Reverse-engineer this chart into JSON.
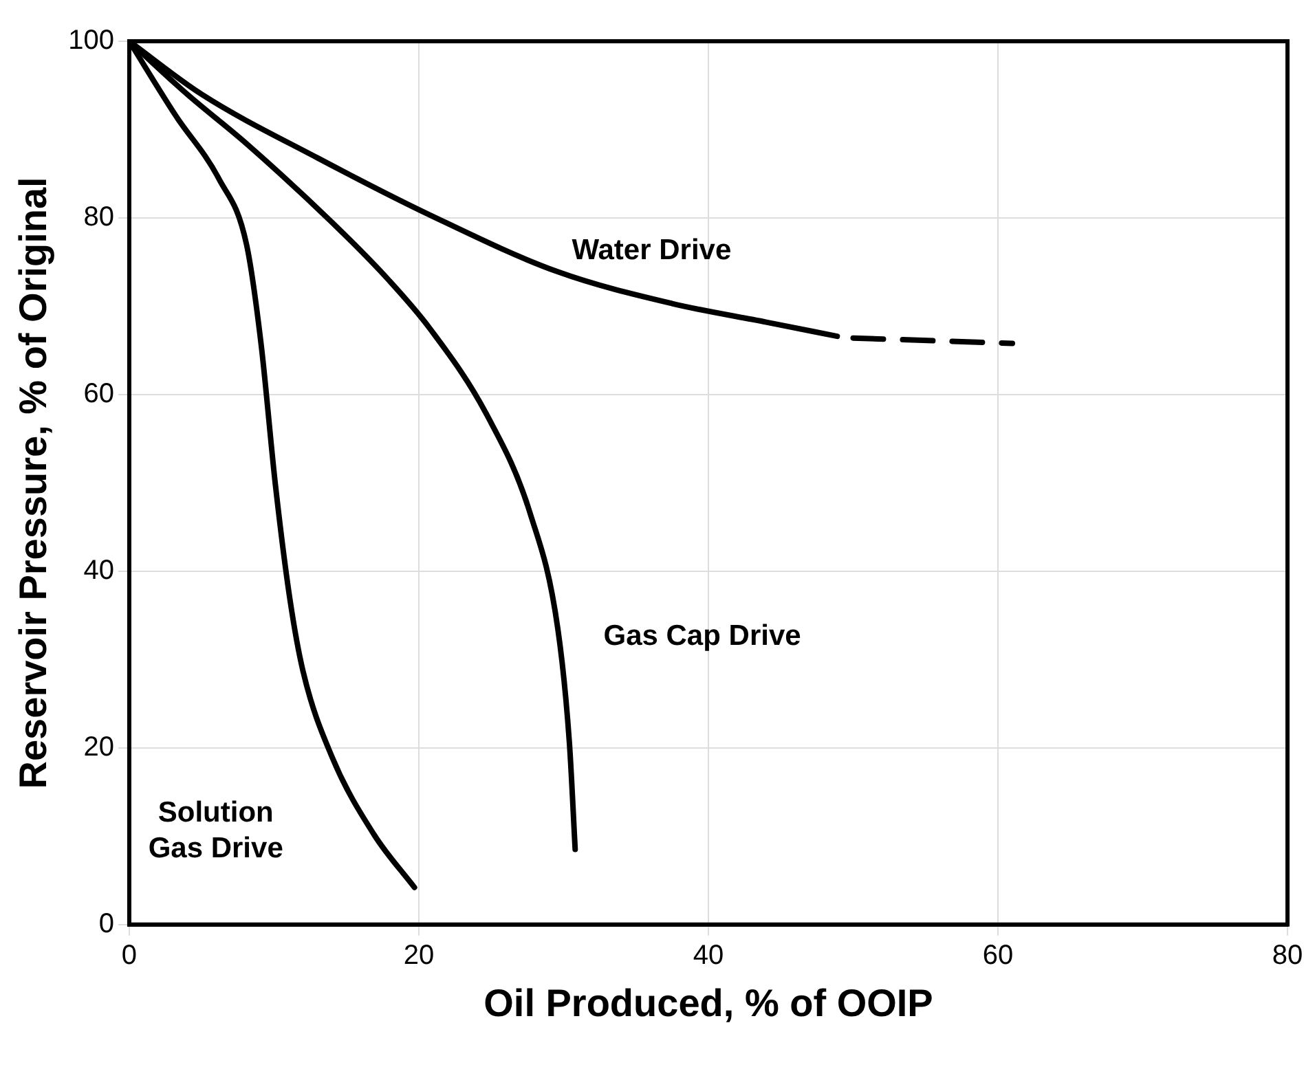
{
  "chart_data": {
    "type": "line",
    "xlabel": "Oil Produced, % of OOIP",
    "ylabel": "Reservoir Pressure, % of Original",
    "xlim": [
      0,
      80
    ],
    "xticks": [
      0,
      20,
      40,
      60,
      80
    ],
    "ylim": [
      0,
      100
    ],
    "yticks": [
      0,
      20,
      40,
      60,
      80,
      100
    ],
    "grid": true,
    "legend": false,
    "marker": "none",
    "series": [
      {
        "name": "Water Drive",
        "color": "#000000",
        "line_style": "solid",
        "x": [
          0,
          5,
          13,
          20.8,
          29.6,
          37.5,
          44,
          48.9
        ],
        "values": [
          100,
          94,
          86.8,
          80.3,
          73.9,
          70.3,
          68.2,
          66.6
        ]
      },
      {
        "color": "#000000",
        "line_style": "dashed",
        "x": [
          50,
          61
        ],
        "values": [
          66.4,
          65.8
        ]
      },
      {
        "name": "Gas Cap Drive",
        "color": "#000000",
        "line_style": "solid",
        "x": [
          0,
          4,
          8.1,
          14,
          17.9,
          20.8,
          24.7,
          27.7,
          29.6,
          30.4,
          30.8
        ],
        "values": [
          100,
          94,
          88.4,
          79.5,
          73,
          67.4,
          57.7,
          46.5,
          33.5,
          20.6,
          8.5
        ]
      },
      {
        "name": "Solution\nGas Drive",
        "color": "#000000",
        "line_style": "solid",
        "x": [
          0,
          3.2,
          6.2,
          8.1,
          9.1,
          10.1,
          11.1,
          12,
          14,
          16.9,
          19.7
        ],
        "values": [
          100,
          91.6,
          84.4,
          77,
          65.8,
          49.7,
          36.8,
          28.7,
          19,
          10.2,
          4.2
        ]
      }
    ]
  }
}
